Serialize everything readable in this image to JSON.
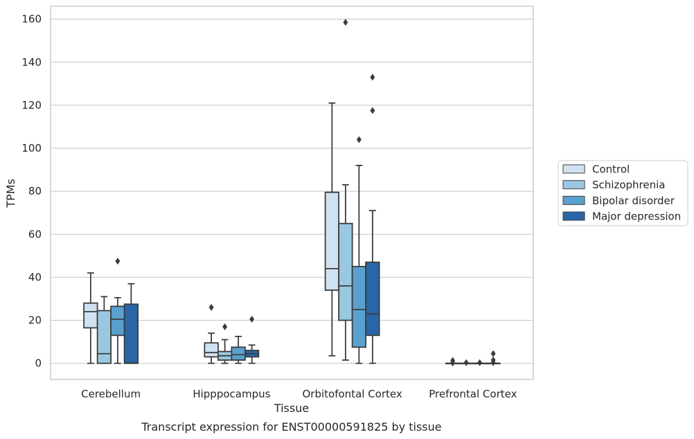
{
  "chart_data": {
    "type": "box",
    "title": "",
    "caption": "Transcript expression for ENST00000591825 by tissue",
    "xlabel": "Tissue",
    "ylabel": "TPMs",
    "ylim": [
      -7.5,
      166
    ],
    "yticks": [
      0,
      20,
      40,
      60,
      80,
      100,
      120,
      140,
      160
    ],
    "grid": "horizontal",
    "legend_position": "right",
    "categories": [
      "Cerebellum",
      "Hipppocampus",
      "Orbitofontal Cortex",
      "Prefrontal Cortex"
    ],
    "series": [
      {
        "name": "Control",
        "color": "#d0e2f2",
        "boxes": [
          {
            "whislo": 0,
            "q1": 16.5,
            "med": 24,
            "q3": 28,
            "whishi": 42,
            "fliers": []
          },
          {
            "whislo": 0,
            "q1": 3,
            "med": 5,
            "q3": 9.5,
            "whishi": 14,
            "fliers": [
              26
            ]
          },
          {
            "whislo": 3.5,
            "q1": 34,
            "med": 44,
            "q3": 79.5,
            "whishi": 121,
            "fliers": []
          },
          {
            "whislo": 0,
            "q1": 0,
            "med": 0,
            "q3": 0,
            "whishi": 0,
            "fliers": [
              0.2,
              1.3
            ]
          }
        ]
      },
      {
        "name": "Schizophrenia",
        "color": "#9ac8e0",
        "boxes": [
          {
            "whislo": 0,
            "q1": 0,
            "med": 4.5,
            "q3": 24.5,
            "whishi": 31,
            "fliers": []
          },
          {
            "whislo": 0,
            "q1": 1.5,
            "med": 3.5,
            "q3": 5.5,
            "whishi": 11,
            "fliers": [
              17
            ]
          },
          {
            "whislo": 1.5,
            "q1": 20,
            "med": 36,
            "q3": 65,
            "whishi": 83,
            "fliers": [
              158.5
            ]
          },
          {
            "whislo": 0,
            "q1": 0,
            "med": 0,
            "q3": 0,
            "whishi": 0,
            "fliers": [
              0.3
            ]
          }
        ]
      },
      {
        "name": "Bipolar disorder",
        "color": "#5aa0cf",
        "boxes": [
          {
            "whislo": 0,
            "q1": 13,
            "med": 20.5,
            "q3": 26.5,
            "whishi": 30.5,
            "fliers": [
              47.5
            ]
          },
          {
            "whislo": 0,
            "q1": 1.5,
            "med": 4,
            "q3": 7.5,
            "whishi": 12.5,
            "fliers": []
          },
          {
            "whislo": 0,
            "q1": 7.5,
            "med": 25,
            "q3": 45,
            "whishi": 92,
            "fliers": [
              104
            ]
          },
          {
            "whislo": 0,
            "q1": 0,
            "med": 0,
            "q3": 0,
            "whishi": 0,
            "fliers": [
              0.3
            ]
          }
        ]
      },
      {
        "name": "Major depression",
        "color": "#2866a8",
        "boxes": [
          {
            "whislo": 0,
            "q1": 0,
            "med": 0.2,
            "q3": 27.5,
            "whishi": 37,
            "fliers": []
          },
          {
            "whislo": 0,
            "q1": 3,
            "med": 4.5,
            "q3": 6,
            "whishi": 8.5,
            "fliers": [
              20.5
            ]
          },
          {
            "whislo": 0,
            "q1": 13,
            "med": 23,
            "q3": 47,
            "whishi": 71,
            "fliers": [
              117.5,
              133
            ]
          },
          {
            "whislo": 0,
            "q1": 0,
            "med": 0,
            "q3": 0,
            "whishi": 0,
            "fliers": [
              0.3,
              1.5,
              4.5
            ]
          }
        ]
      }
    ]
  }
}
